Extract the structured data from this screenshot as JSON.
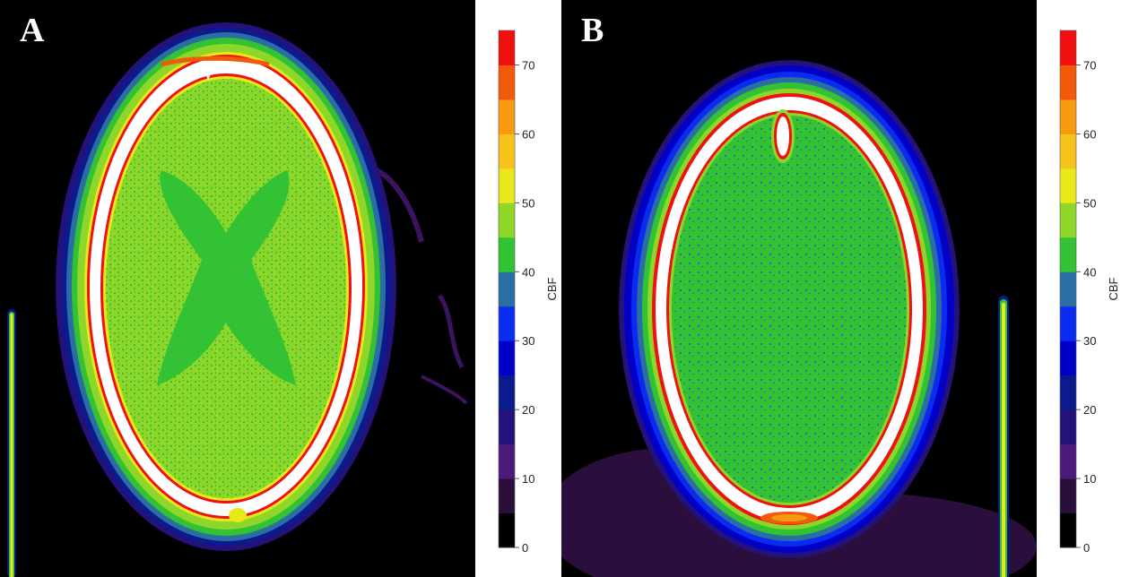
{
  "panels": [
    {
      "letter": "A"
    },
    {
      "letter": "B"
    }
  ],
  "colorbar": {
    "label": "CBF",
    "range": [
      0,
      75
    ],
    "tick_labels": [
      "0",
      "10",
      "20",
      "30",
      "40",
      "50",
      "60",
      "70"
    ],
    "tick_values": [
      0,
      10,
      20,
      30,
      40,
      50,
      60,
      70
    ],
    "bands": [
      {
        "from": 0,
        "to": 5,
        "color": "#000000"
      },
      {
        "from": 5,
        "to": 10,
        "color": "#2a0f3d"
      },
      {
        "from": 10,
        "to": 15,
        "color": "#4b1a7a"
      },
      {
        "from": 15,
        "to": 20,
        "color": "#24117a"
      },
      {
        "from": 20,
        "to": 25,
        "color": "#0b1a8c"
      },
      {
        "from": 25,
        "to": 30,
        "color": "#0000c8"
      },
      {
        "from": 30,
        "to": 35,
        "color": "#0a2cf0"
      },
      {
        "from": 35,
        "to": 40,
        "color": "#2a6ea3"
      },
      {
        "from": 40,
        "to": 45,
        "color": "#33c233"
      },
      {
        "from": 45,
        "to": 50,
        "color": "#8fd62a"
      },
      {
        "from": 50,
        "to": 55,
        "color": "#e8e81a"
      },
      {
        "from": 55,
        "to": 60,
        "color": "#f7c21a"
      },
      {
        "from": 60,
        "to": 65,
        "color": "#f79a12"
      },
      {
        "from": 65,
        "to": 70,
        "color": "#f05a0a"
      },
      {
        "from": 70,
        "to": 75,
        "color": "#f01010"
      }
    ]
  }
}
